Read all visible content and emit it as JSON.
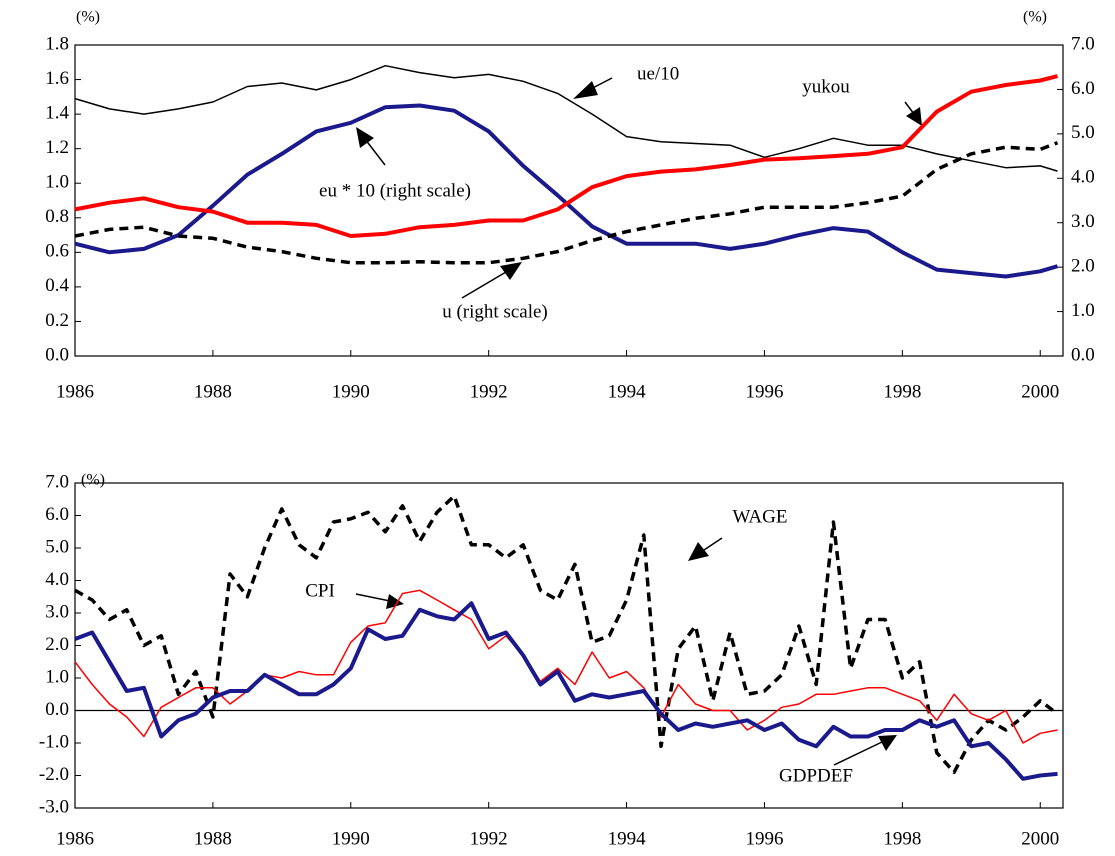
{
  "chart_data": [
    {
      "type": "line",
      "y_unit": "(%)",
      "y2_unit": "(%)",
      "x": [
        1986,
        1986.5,
        1987,
        1987.5,
        1988,
        1988.5,
        1989,
        1989.5,
        1990,
        1990.5,
        1991,
        1991.5,
        1992,
        1992.5,
        1993,
        1993.5,
        1994,
        1994.5,
        1995,
        1995.5,
        1996,
        1996.5,
        1997,
        1997.5,
        1998,
        1998.5,
        1999,
        1999.5,
        2000,
        2000.25
      ],
      "xlim": [
        1986,
        2000.33
      ],
      "xticks": [
        1986,
        1988,
        1990,
        1992,
        1994,
        1996,
        1998,
        2000
      ],
      "ylim": [
        0,
        1.8
      ],
      "yticks": [
        {
          "value": 0,
          "label": "0.0"
        },
        0.2,
        0.4,
        0.6,
        0.8,
        {
          "value": 1,
          "label": "1.0"
        },
        1.2,
        1.4,
        1.6,
        1.8
      ],
      "y2lim": [
        0,
        7
      ],
      "y2ticks": [
        {
          "value": 0,
          "label": "0.0"
        },
        {
          "value": 1,
          "label": "1.0"
        },
        {
          "value": 2,
          "label": "2.0"
        },
        {
          "value": 3,
          "label": "3.0"
        },
        {
          "value": 4,
          "label": "4.0"
        },
        {
          "value": 5,
          "label": "5.0"
        },
        {
          "value": 6,
          "label": "6.0"
        },
        {
          "value": 7,
          "label": "7.0"
        }
      ],
      "series": [
        {
          "name": "ue/10",
          "color": "#000000",
          "style": "thin",
          "values": [
            1.49,
            1.43,
            1.4,
            1.43,
            1.47,
            1.56,
            1.58,
            1.54,
            1.6,
            1.68,
            1.64,
            1.61,
            1.63,
            1.59,
            1.52,
            1.4,
            1.27,
            1.24,
            1.23,
            1.22,
            1.15,
            1.2,
            1.26,
            1.22,
            1.22,
            1.17,
            1.13,
            1.09,
            1.1,
            1.07
          ]
        },
        {
          "name": "yukou",
          "color": "#1a1a8c",
          "style": "thick",
          "values": [
            0.65,
            0.6,
            0.62,
            0.7,
            0.87,
            1.05,
            1.17,
            1.3,
            1.35,
            1.44,
            1.45,
            1.42,
            1.3,
            1.1,
            0.93,
            0.75,
            0.65,
            0.65,
            0.65,
            0.62,
            0.65,
            0.7,
            0.74,
            0.72,
            0.6,
            0.5,
            0.48,
            0.46,
            0.49,
            0.52
          ]
        },
        {
          "name": "eu * 10 (right scale)",
          "color": "#ff0000",
          "style": "thick",
          "axis": "y2",
          "values": [
            3.3,
            3.45,
            3.55,
            3.35,
            3.25,
            3.0,
            3.0,
            2.95,
            2.7,
            2.75,
            2.9,
            2.95,
            3.05,
            3.05,
            3.3,
            3.8,
            4.05,
            4.15,
            4.2,
            4.3,
            4.42,
            4.45,
            4.5,
            4.55,
            4.7,
            5.5,
            5.95,
            6.1,
            6.2,
            6.3
          ]
        },
        {
          "name": "u (right scale)",
          "color": "#000000",
          "style": "dashed",
          "axis": "y2",
          "values": [
            2.7,
            2.85,
            2.9,
            2.7,
            2.65,
            2.45,
            2.35,
            2.2,
            2.1,
            2.1,
            2.12,
            2.1,
            2.1,
            2.2,
            2.35,
            2.6,
            2.8,
            2.95,
            3.1,
            3.2,
            3.35,
            3.35,
            3.35,
            3.45,
            3.6,
            4.2,
            4.55,
            4.7,
            4.65,
            4.8
          ]
        }
      ]
    },
    {
      "type": "line",
      "y_unit": "(%)",
      "x": [
        1986,
        1986.25,
        1986.5,
        1986.75,
        1987,
        1987.25,
        1987.5,
        1987.75,
        1988,
        1988.25,
        1988.5,
        1988.75,
        1989,
        1989.25,
        1989.5,
        1989.75,
        1990,
        1990.25,
        1990.5,
        1990.75,
        1991,
        1991.25,
        1991.5,
        1991.75,
        1992,
        1992.25,
        1992.5,
        1992.75,
        1993,
        1993.25,
        1993.5,
        1993.75,
        1994,
        1994.25,
        1994.5,
        1994.75,
        1995,
        1995.25,
        1995.5,
        1995.75,
        1996,
        1996.25,
        1996.5,
        1996.75,
        1997,
        1997.25,
        1997.5,
        1997.75,
        1998,
        1998.25,
        1998.5,
        1998.75,
        1999,
        1999.25,
        1999.5,
        1999.75,
        2000,
        2000.25
      ],
      "xlim": [
        1986,
        2000.33
      ],
      "xticks": [
        1986,
        1988,
        1990,
        1992,
        1994,
        1996,
        1998,
        2000
      ],
      "ylim": [
        -3,
        7
      ],
      "yticks": [
        {
          "value": -3,
          "label": "-3.0"
        },
        {
          "value": -2,
          "label": "-2.0"
        },
        {
          "value": -1,
          "label": "-1.0"
        },
        {
          "value": 0,
          "label": "0.0"
        },
        {
          "value": 1,
          "label": "1.0"
        },
        {
          "value": 2,
          "label": "2.0"
        },
        {
          "value": 3,
          "label": "3.0"
        },
        {
          "value": 4,
          "label": "4.0"
        },
        {
          "value": 5,
          "label": "5.0"
        },
        {
          "value": 6,
          "label": "6.0"
        },
        {
          "value": 7,
          "label": "7.0"
        }
      ],
      "series": [
        {
          "name": "WAGE",
          "color": "#000000",
          "style": "dashed",
          "values": [
            3.7,
            3.4,
            2.8,
            3.1,
            2.0,
            2.3,
            0.5,
            1.2,
            -0.2,
            4.2,
            3.5,
            5.0,
            6.2,
            5.1,
            4.7,
            5.8,
            5.9,
            6.1,
            5.5,
            6.3,
            5.2,
            6.1,
            6.6,
            5.1,
            5.1,
            4.7,
            5.1,
            3.7,
            3.4,
            4.5,
            2.1,
            2.3,
            3.4,
            5.4,
            -1.1,
            1.9,
            2.6,
            0.3,
            2.4,
            0.5,
            0.6,
            1.1,
            2.6,
            0.8,
            5.8,
            1.3,
            2.8,
            2.8,
            1.0,
            1.5,
            -1.3,
            -1.9,
            -0.9,
            -0.3,
            -0.6,
            -0.2,
            0.3,
            -0.1
          ]
        },
        {
          "name": "CPI",
          "color": "#ff0000",
          "style": "thin",
          "values": [
            1.5,
            0.8,
            0.2,
            -0.2,
            -0.8,
            0.1,
            0.4,
            0.7,
            0.7,
            0.2,
            0.6,
            1.1,
            1.0,
            1.2,
            1.1,
            1.1,
            2.1,
            2.6,
            2.7,
            3.6,
            3.7,
            3.4,
            3.1,
            2.8,
            1.9,
            2.3,
            1.7,
            0.9,
            1.3,
            0.8,
            1.8,
            1.0,
            1.2,
            0.7,
            -0.2,
            0.8,
            0.2,
            0.0,
            0.0,
            -0.6,
            -0.3,
            0.1,
            0.2,
            0.5,
            0.5,
            0.6,
            0.7,
            0.7,
            0.5,
            0.3,
            -0.3,
            0.5,
            -0.1,
            -0.3,
            0.0,
            -1.0,
            -0.7,
            -0.6
          ]
        },
        {
          "name": "GDPDEF",
          "color": "#1a1a8c",
          "style": "thick",
          "values": [
            2.2,
            2.4,
            1.5,
            0.6,
            0.7,
            -0.8,
            -0.3,
            -0.1,
            0.4,
            0.6,
            0.6,
            1.1,
            0.8,
            0.5,
            0.5,
            0.8,
            1.3,
            2.5,
            2.2,
            2.3,
            3.1,
            2.9,
            2.8,
            3.3,
            2.2,
            2.4,
            1.7,
            0.8,
            1.2,
            0.3,
            0.5,
            0.4,
            0.5,
            0.6,
            -0.1,
            -0.6,
            -0.4,
            -0.5,
            -0.4,
            -0.3,
            -0.6,
            -0.4,
            -0.9,
            -1.1,
            -0.5,
            -0.8,
            -0.8,
            -0.6,
            -0.6,
            -0.3,
            -0.5,
            -0.3,
            -1.1,
            -1.0,
            -1.5,
            -2.1,
            -2.0,
            -1.95
          ]
        }
      ]
    }
  ]
}
